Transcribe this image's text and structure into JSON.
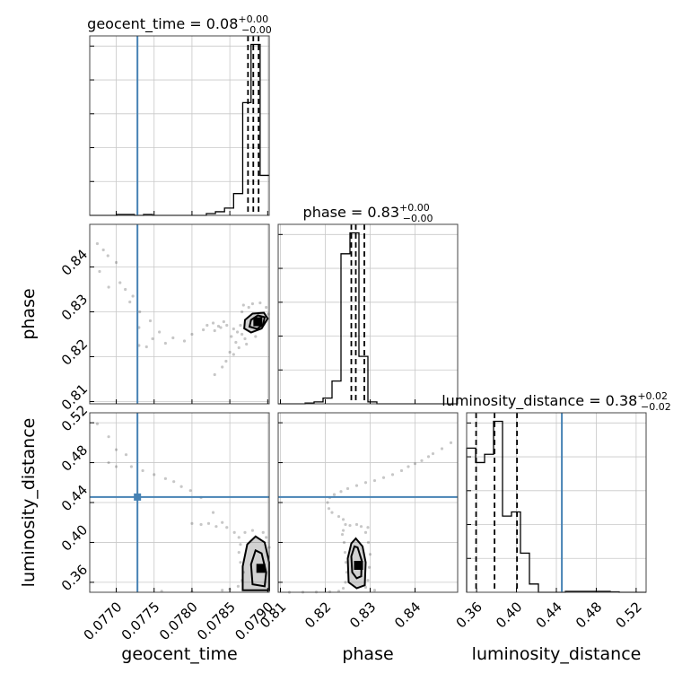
{
  "chart_data": {
    "type": "corner",
    "parameters": [
      "geocent_time",
      "phase",
      "luminosity_distance"
    ],
    "titles": [
      {
        "parameter": "geocent_time",
        "median": "0.08",
        "plus": "+0.00",
        "minus": "−0.00"
      },
      {
        "parameter": "phase",
        "median": "0.83",
        "plus": "+0.00",
        "minus": "−0.00"
      },
      {
        "parameter": "luminosity_distance",
        "median": "0.38",
        "plus": "+0.02",
        "minus": "−0.02"
      }
    ],
    "axes": {
      "geocent_time": {
        "range": [
          0.07665,
          0.07902
        ],
        "ticks": [
          0.077,
          0.0775,
          0.078,
          0.0785,
          0.079
        ],
        "tick_labels": [
          "0.0770",
          "0.0775",
          "0.0780",
          "0.0785",
          "0.0790"
        ]
      },
      "phase": {
        "range": [
          0.8095,
          0.8495
        ],
        "ticks": [
          0.81,
          0.82,
          0.83,
          0.84
        ],
        "tick_labels": [
          "0.81",
          "0.82",
          "0.83",
          "0.84"
        ]
      },
      "luminosity_distance": {
        "range": [
          0.35,
          0.53
        ],
        "ticks": [
          0.36,
          0.4,
          0.44,
          0.48,
          0.52
        ],
        "tick_labels": [
          "0.36",
          "0.40",
          "0.44",
          "0.48",
          "0.52"
        ]
      }
    },
    "truths": {
      "geocent_time": 0.07728,
      "phase": null,
      "luminosity_distance": 0.4455
    },
    "truth_color": "#4682b4",
    "quantiles": {
      "geocent_time": [
        0.07874,
        0.07881,
        0.07888
      ],
      "phase": [
        0.8258,
        0.8268,
        0.8287
      ],
      "luminosity_distance": [
        0.3595,
        0.378,
        0.4005
      ]
    },
    "histograms": {
      "geocent_time": {
        "edges": [
          0.07665,
          0.07677,
          0.07689,
          0.07701,
          0.07712,
          0.07724,
          0.07736,
          0.07748,
          0.0776,
          0.07772,
          0.07784,
          0.07795,
          0.07807,
          0.07819,
          0.07831,
          0.07843,
          0.07855,
          0.07867,
          0.07878,
          0.0789,
          0.07902
        ],
        "counts": [
          0,
          0,
          0,
          0.5,
          0.5,
          0,
          0.5,
          0,
          0,
          0,
          0,
          0,
          0,
          1,
          2,
          4,
          12,
          62,
          94,
          22
        ]
      },
      "phase": {
        "edges": [
          0.8095,
          0.8115,
          0.8135,
          0.8155,
          0.8175,
          0.8195,
          0.8215,
          0.8235,
          0.8255,
          0.8275,
          0.8295,
          0.8315,
          0.8335,
          0.8355,
          0.8375,
          0.8395,
          0.8415,
          0.8435,
          0.8455,
          0.8475,
          0.8495
        ],
        "counts": [
          0,
          0,
          0,
          0.4,
          1,
          3,
          12,
          79,
          90,
          25,
          1,
          0,
          0,
          0,
          0,
          0,
          0,
          0,
          0,
          0
        ]
      },
      "luminosity_distance": {
        "edges": [
          0.35,
          0.359,
          0.368,
          0.377,
          0.386,
          0.395,
          0.404,
          0.413,
          0.422,
          0.431,
          0.44,
          0.449,
          0.458,
          0.467,
          0.476,
          0.485,
          0.494,
          0.503,
          0.512,
          0.521,
          0.53
        ],
        "counts": [
          70,
          63,
          67,
          83,
          37,
          39,
          19,
          4,
          0,
          0,
          0,
          0.4,
          0.4,
          0.4,
          0.4,
          0.4,
          0.2,
          0,
          0,
          0
        ]
      }
    },
    "pairs": [
      {
        "x": "geocent_time",
        "y": "phase",
        "peak": [
          0.07887,
          0.8278
        ],
        "contours": [
          [
            [
              0.07869,
              0.8263
            ],
            [
              0.07878,
              0.8254
            ],
            [
              0.07892,
              0.8263
            ],
            [
              0.079,
              0.8285
            ],
            [
              0.07895,
              0.8298
            ],
            [
              0.0788,
              0.8296
            ],
            [
              0.0787,
              0.8282
            ]
          ],
          [
            [
              0.07876,
              0.8267
            ],
            [
              0.07886,
              0.8262
            ],
            [
              0.07894,
              0.8272
            ],
            [
              0.07896,
              0.8288
            ],
            [
              0.07887,
              0.8292
            ],
            [
              0.07878,
              0.8282
            ]
          ]
        ],
        "scatter": [
          [
            0.07675,
            0.8452
          ],
          [
            0.07683,
            0.8438
          ],
          [
            0.07689,
            0.8425
          ],
          [
            0.077,
            0.841
          ],
          [
            0.07678,
            0.839
          ],
          [
            0.0769,
            0.8355
          ],
          [
            0.07705,
            0.8365
          ],
          [
            0.07712,
            0.835
          ],
          [
            0.07722,
            0.8335
          ],
          [
            0.07718,
            0.8322
          ],
          [
            0.07731,
            0.83
          ],
          [
            0.07745,
            0.828
          ],
          [
            0.0773,
            0.8265
          ],
          [
            0.07757,
            0.8255
          ],
          [
            0.07748,
            0.824
          ],
          [
            0.07765,
            0.823
          ],
          [
            0.0774,
            0.8222
          ],
          [
            0.0773,
            0.8225
          ],
          [
            0.07775,
            0.8242
          ],
          [
            0.0779,
            0.8235
          ],
          [
            0.078,
            0.825
          ],
          [
            0.07815,
            0.826
          ],
          [
            0.0783,
            0.8258
          ],
          [
            0.07838,
            0.8265
          ],
          [
            0.07846,
            0.827
          ],
          [
            0.07855,
            0.8262
          ],
          [
            0.0786,
            0.8255
          ],
          [
            0.07852,
            0.8245
          ],
          [
            0.07858,
            0.8232
          ],
          [
            0.07862,
            0.822
          ],
          [
            0.0785,
            0.821
          ],
          [
            0.07855,
            0.8205
          ],
          [
            0.07845,
            0.819
          ],
          [
            0.0784,
            0.8177
          ],
          [
            0.0783,
            0.816
          ],
          [
            0.07864,
            0.827
          ],
          [
            0.07866,
            0.825
          ],
          [
            0.07866,
            0.83
          ],
          [
            0.07868,
            0.8315
          ],
          [
            0.0787,
            0.824
          ],
          [
            0.07872,
            0.8228
          ],
          [
            0.07875,
            0.831
          ],
          [
            0.0788,
            0.8318
          ],
          [
            0.07884,
            0.8245
          ],
          [
            0.0789,
            0.832
          ],
          [
            0.07898,
            0.831
          ],
          [
            0.07901,
            0.8295
          ],
          [
            0.07842,
            0.8278
          ],
          [
            0.07835,
            0.8268
          ],
          [
            0.07828,
            0.8275
          ],
          [
            0.0782,
            0.827
          ]
        ]
      },
      {
        "x": "geocent_time",
        "y": "luminosity_distance",
        "peak": [
          0.07891,
          0.374
        ],
        "contours": [
          [
            [
              0.07867,
              0.352
            ],
            [
              0.07867,
              0.376
            ],
            [
              0.07873,
              0.398
            ],
            [
              0.07884,
              0.406
            ],
            [
              0.07896,
              0.4
            ],
            [
              0.07902,
              0.38
            ],
            [
              0.07902,
              0.352
            ]
          ],
          [
            [
              0.0788,
              0.358
            ],
            [
              0.07878,
              0.378
            ],
            [
              0.07884,
              0.392
            ],
            [
              0.07892,
              0.389
            ],
            [
              0.07898,
              0.37
            ],
            [
              0.07896,
              0.356
            ]
          ]
        ],
        "scatter": [
          [
            0.07675,
            0.519
          ],
          [
            0.0769,
            0.506
          ],
          [
            0.077,
            0.493
          ],
          [
            0.07713,
            0.488
          ],
          [
            0.0769,
            0.48
          ],
          [
            0.077,
            0.476
          ],
          [
            0.0772,
            0.476
          ],
          [
            0.07735,
            0.472
          ],
          [
            0.0775,
            0.468
          ],
          [
            0.07765,
            0.464
          ],
          [
            0.07776,
            0.461
          ],
          [
            0.07786,
            0.456
          ],
          [
            0.07798,
            0.452
          ],
          [
            0.07812,
            0.445
          ],
          [
            0.07828,
            0.43
          ],
          [
            0.0784,
            0.42
          ],
          [
            0.07812,
            0.418
          ],
          [
            0.078,
            0.419
          ],
          [
            0.07822,
            0.419
          ],
          [
            0.07832,
            0.416
          ],
          [
            0.07846,
            0.415
          ],
          [
            0.07856,
            0.41
          ],
          [
            0.07862,
            0.405
          ],
          [
            0.07864,
            0.398
          ],
          [
            0.07862,
            0.39
          ],
          [
            0.07864,
            0.38
          ],
          [
            0.07868,
            0.37
          ],
          [
            0.07866,
            0.362
          ],
          [
            0.07861,
            0.356
          ],
          [
            0.0785,
            0.353
          ],
          [
            0.0784,
            0.352
          ],
          [
            0.078,
            0.351
          ],
          [
            0.0776,
            0.351
          ],
          [
            0.0787,
            0.41
          ],
          [
            0.0788,
            0.412
          ],
          [
            0.07894,
            0.41
          ],
          [
            0.07898,
            0.405
          ],
          [
            0.07902,
            0.395
          ]
        ]
      },
      {
        "x": "phase",
        "y": "luminosity_distance",
        "peak": [
          0.8274,
          0.377
        ],
        "contours": [
          [
            [
              0.8252,
              0.36
            ],
            [
              0.825,
              0.384
            ],
            [
              0.8258,
              0.399
            ],
            [
              0.8268,
              0.404
            ],
            [
              0.8283,
              0.396
            ],
            [
              0.829,
              0.38
            ],
            [
              0.8288,
              0.357
            ],
            [
              0.827,
              0.354
            ]
          ],
          [
            [
              0.826,
              0.37
            ],
            [
              0.8258,
              0.386
            ],
            [
              0.8265,
              0.396
            ],
            [
              0.8272,
              0.395
            ],
            [
              0.8281,
              0.382
            ],
            [
              0.828,
              0.366
            ],
            [
              0.827,
              0.364
            ]
          ]
        ],
        "scatter": [
          [
            0.848,
            0.5
          ],
          [
            0.846,
            0.494
          ],
          [
            0.844,
            0.489
          ],
          [
            0.843,
            0.486
          ],
          [
            0.8415,
            0.482
          ],
          [
            0.84,
            0.479
          ],
          [
            0.8385,
            0.476
          ],
          [
            0.837,
            0.472
          ],
          [
            0.835,
            0.468
          ],
          [
            0.833,
            0.465
          ],
          [
            0.831,
            0.462
          ],
          [
            0.829,
            0.46
          ],
          [
            0.827,
            0.457
          ],
          [
            0.825,
            0.454
          ],
          [
            0.8235,
            0.451
          ],
          [
            0.822,
            0.448
          ],
          [
            0.821,
            0.445
          ],
          [
            0.8205,
            0.44
          ],
          [
            0.8208,
            0.434
          ],
          [
            0.8215,
            0.43
          ],
          [
            0.823,
            0.426
          ],
          [
            0.824,
            0.423
          ],
          [
            0.8245,
            0.418
          ],
          [
            0.824,
            0.412
          ],
          [
            0.8238,
            0.408
          ],
          [
            0.8242,
            0.4
          ],
          [
            0.8244,
            0.39
          ],
          [
            0.8246,
            0.38
          ],
          [
            0.8248,
            0.37
          ],
          [
            0.8245,
            0.36
          ],
          [
            0.824,
            0.354
          ],
          [
            0.823,
            0.351
          ],
          [
            0.821,
            0.3505
          ],
          [
            0.818,
            0.3502
          ],
          [
            0.815,
            0.3501
          ],
          [
            0.812,
            0.35
          ],
          [
            0.8295,
            0.415
          ],
          [
            0.829,
            0.41
          ],
          [
            0.8296,
            0.4
          ],
          [
            0.83,
            0.388
          ],
          [
            0.8298,
            0.375
          ],
          [
            0.8295,
            0.362
          ],
          [
            0.829,
            0.355
          ],
          [
            0.831,
            0.352
          ],
          [
            0.8255,
            0.417
          ],
          [
            0.827,
            0.418
          ],
          [
            0.828,
            0.416
          ]
        ]
      }
    ]
  }
}
